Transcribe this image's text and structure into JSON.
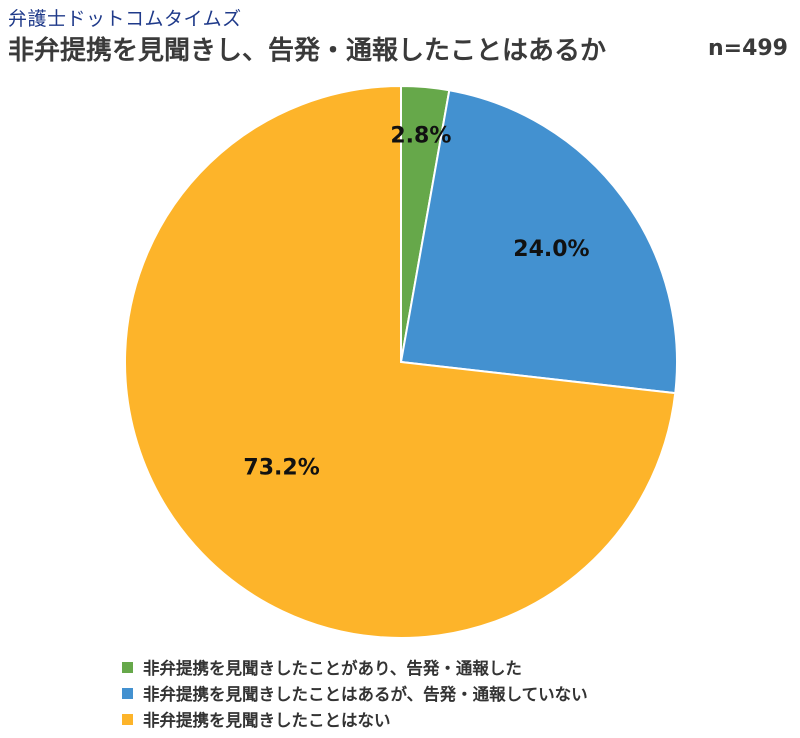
{
  "header": {
    "brand": "弁護士ドットコムタイムズ",
    "title": "非弁提携を見聞きし、告発・通報したことはあるか",
    "sample_size": "n=499"
  },
  "chart_data": {
    "type": "pie",
    "title": "非弁提携を見聞きし、告発・通報したことはあるか",
    "start_angle_deg": 0,
    "direction": "clockwise",
    "legend_position": "bottom-left",
    "slices": [
      {
        "label": "非弁提携を見聞きしたことがあり、告発・通報した",
        "value": 2.8,
        "display": "2.8%",
        "color": "#66a84a"
      },
      {
        "label": "非弁提携を見聞きしたことはあるが、告発・通報していない",
        "value": 24.0,
        "display": "24.0%",
        "color": "#4391d0"
      },
      {
        "label": "非弁提携を見聞きしたことはない",
        "value": 73.2,
        "display": "73.2%",
        "color": "#fdb42a"
      }
    ]
  }
}
